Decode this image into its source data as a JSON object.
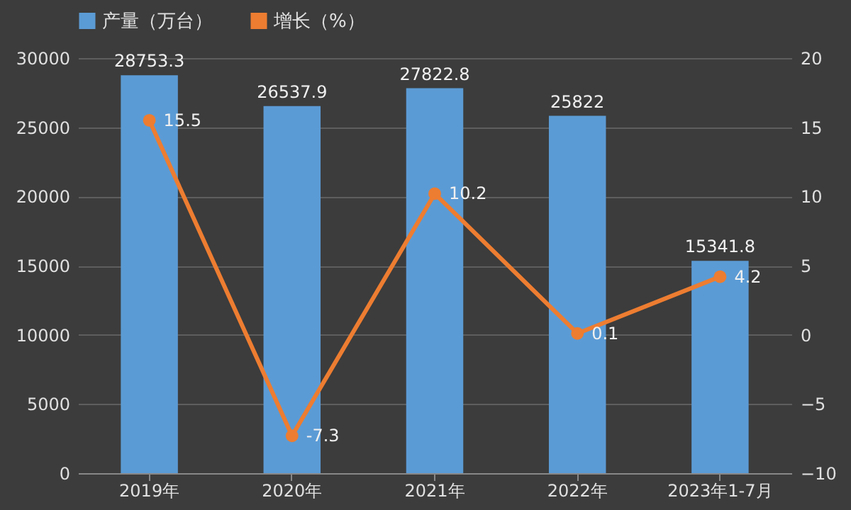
{
  "chart_data": {
    "type": "bar",
    "categories": [
      "2019年",
      "2020年",
      "2021年",
      "2022年",
      "2023年1-7月"
    ],
    "series": [
      {
        "name": "产量（万台）",
        "color": "#5b9bd5",
        "values": [
          28753.3,
          26537.9,
          27822.8,
          25822,
          15341.8
        ]
      },
      {
        "name": "增长（%）",
        "type": "line",
        "axis": "y2",
        "color": "#ed7d31",
        "values": [
          15.5,
          -7.3,
          10.2,
          0.1,
          4.2
        ]
      }
    ],
    "ylim": [
      0,
      30000
    ],
    "yticks": [
      0,
      5000,
      10000,
      15000,
      20000,
      25000,
      30000
    ],
    "y2lim": [
      -10,
      20
    ],
    "y2ticks": [
      -10,
      -5,
      0,
      5,
      10,
      15,
      20
    ],
    "data_labels": true,
    "grid": "y",
    "legend": "top",
    "marker": "circle"
  }
}
